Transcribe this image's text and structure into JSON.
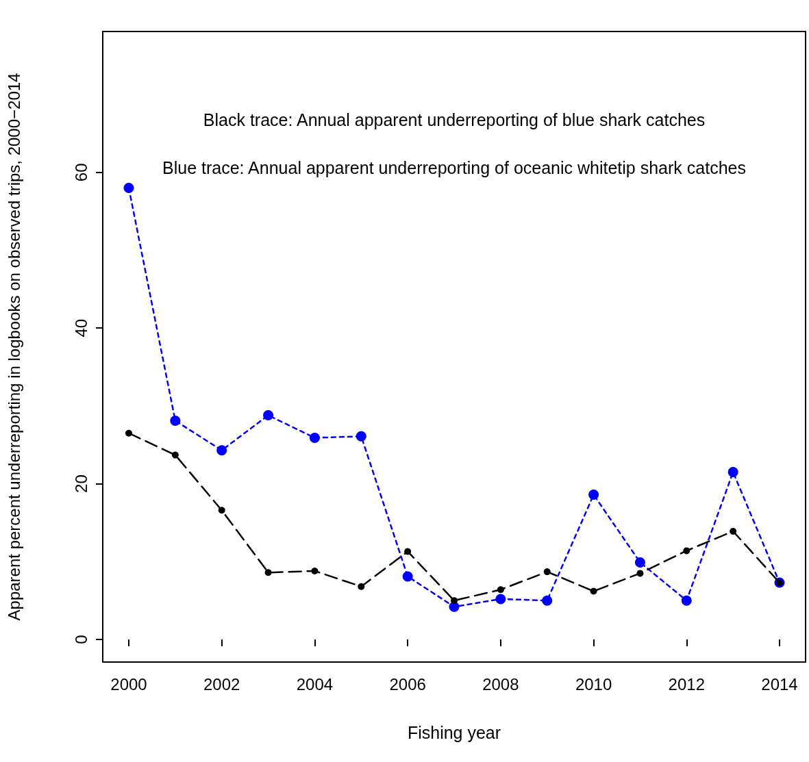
{
  "chart_data": {
    "type": "line",
    "xlabel": "Fishing year",
    "ylabel": "Apparent percent underreporting in logbooks on observed trips, 2000−2014",
    "annotations": [
      "Black trace: Annual apparent underreporting of blue shark catches",
      "Blue trace: Annual apparent underreporting of oceanic whitetip shark catches"
    ],
    "x": [
      2000,
      2001,
      2002,
      2003,
      2004,
      2005,
      2006,
      2007,
      2008,
      2009,
      2010,
      2011,
      2012,
      2013,
      2014
    ],
    "series": [
      {
        "color": "#000000",
        "line_style": "dashed",
        "values": [
          26.5,
          23.7,
          16.6,
          8.6,
          8.8,
          6.8,
          11.3,
          5.0,
          6.4,
          8.7,
          6.2,
          8.5,
          11.4,
          13.9,
          7.3
        ]
      },
      {
        "color": "#0000ff",
        "line_style": "dotted",
        "values": [
          58.0,
          28.1,
          24.3,
          28.8,
          25.9,
          26.1,
          8.1,
          4.2,
          5.2,
          5.0,
          18.6,
          9.9,
          5.0,
          21.5,
          7.3
        ]
      }
    ],
    "marker": "circle",
    "xlim": [
      1999.44,
      2014.56
    ],
    "xticks": [
      2000,
      2002,
      2004,
      2006,
      2008,
      2010,
      2012,
      2014
    ],
    "ylim": [
      -2.9,
      78.1
    ],
    "yticks": [
      0,
      20,
      40,
      60
    ],
    "grid": false
  }
}
